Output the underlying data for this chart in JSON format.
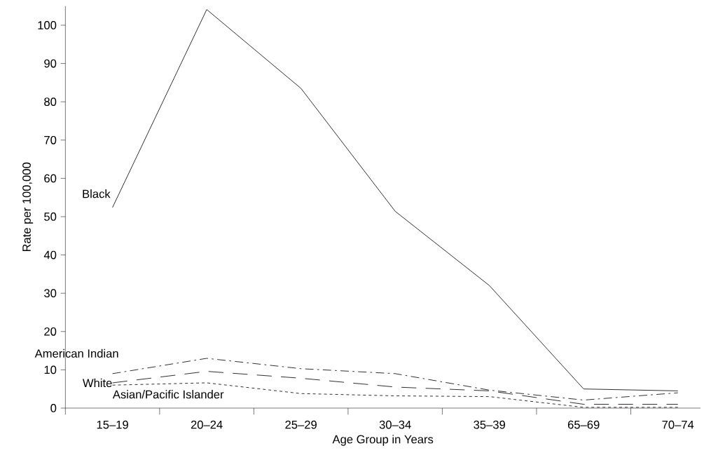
{
  "chart_data": {
    "type": "line",
    "xlabel": "Age Group in Years",
    "ylabel": "Rate per 100,000",
    "categories": [
      "15–19",
      "20–24",
      "25–29",
      "30–34",
      "35–39",
      "65–69",
      "70–74"
    ],
    "series": [
      {
        "name": "Black",
        "color": "#231f20",
        "line_style": "solid",
        "values": [
          52.4,
          104.1,
          83.5,
          51.4,
          32.0,
          5.0,
          4.5
        ]
      },
      {
        "name": "American Indian",
        "color": "#231f20",
        "line_style": "dashdot",
        "values": [
          9.0,
          13.0,
          10.3,
          9.0,
          4.7,
          2.1,
          4.0
        ]
      },
      {
        "name": "White",
        "color": "#231f20",
        "line_style": "longdashed",
        "values": [
          6.6,
          9.6,
          7.8,
          5.5,
          4.5,
          1.0,
          1.0
        ]
      },
      {
        "name": "Asian/Pacific Islander",
        "color": "#231f20",
        "line_style": "dashed",
        "values": [
          6.0,
          6.6,
          3.8,
          3.2,
          3.0,
          0.2,
          0.2
        ]
      }
    ],
    "ylim": [
      0,
      105
    ],
    "yticks": [
      0,
      10,
      20,
      30,
      40,
      50,
      60,
      70,
      80,
      90,
      100
    ],
    "grid": false,
    "legend": false,
    "marker": "none"
  }
}
